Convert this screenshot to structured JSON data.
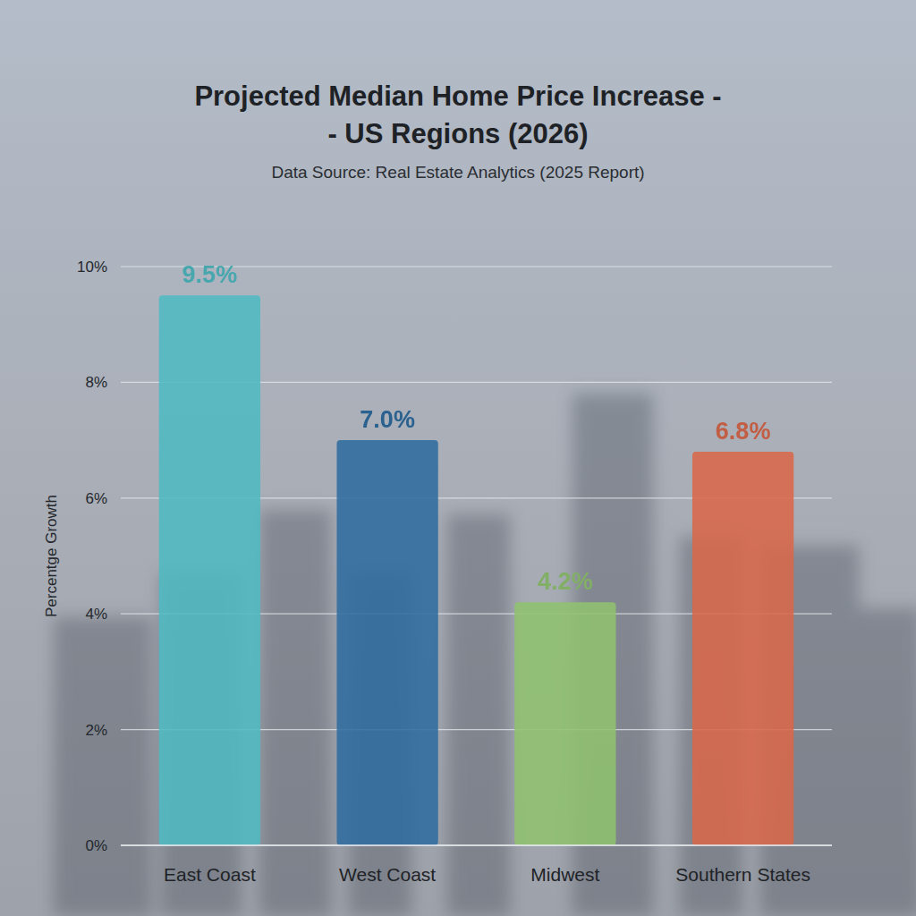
{
  "chart_data": {
    "type": "bar",
    "title": "Projected Median Home Price Increase -\n- US Regions (2026)",
    "subtitle": "Data Source: Real Estate Analytics (2025 Report)",
    "y_label": "Percentge Growth",
    "categories": [
      "East Coast",
      "West Coast",
      "Midwest",
      "Southern States"
    ],
    "values": [
      9.5,
      7,
      4.2,
      6.8
    ],
    "value_labels": [
      "9.5%",
      "7.0%",
      "4.2%",
      "6.8%"
    ],
    "colors": [
      "#4fb9c1",
      "#2f6c9e",
      "#8fc270",
      "#d8684a"
    ],
    "ylim": [
      0,
      10
    ],
    "yticks": [
      {
        "value": 0,
        "label": "0%"
      },
      {
        "value": 2,
        "label": "2%"
      },
      {
        "value": 4,
        "label": "4%"
      },
      {
        "value": 6,
        "label": "6%"
      },
      {
        "value": 8,
        "label": "8%"
      },
      {
        "value": 10,
        "label": "10%"
      }
    ],
    "grid": true,
    "data_labels": true
  }
}
